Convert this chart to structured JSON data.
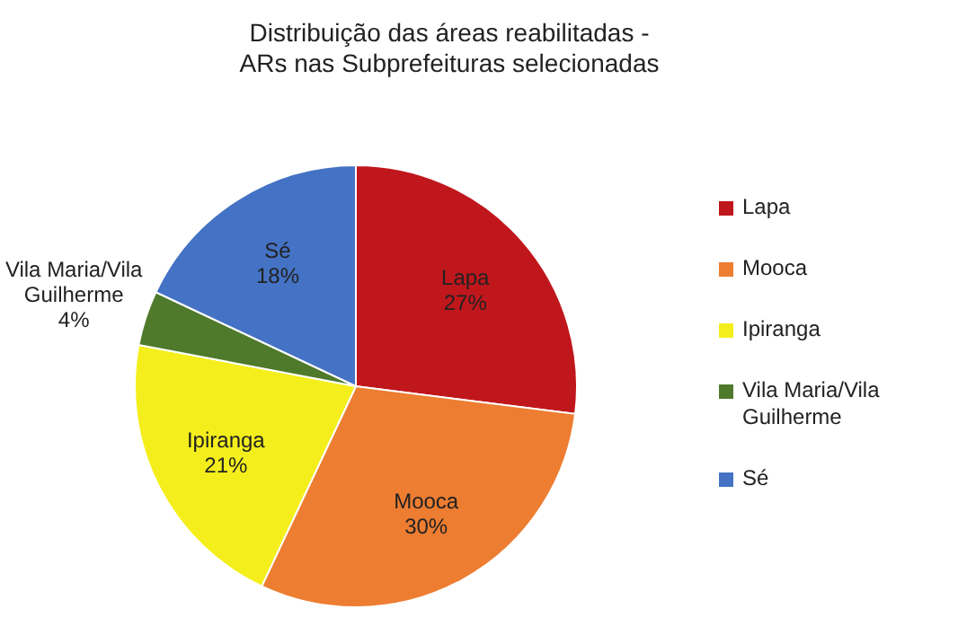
{
  "chart_data": {
    "type": "pie",
    "title": "Distribuição das áreas reabilitadas - ARs nas Subprefeituras selecionadas",
    "categories": [
      "Lapa",
      "Mooca",
      "Ipiranga",
      "Vila Maria/Vila Guilherme",
      "Sé"
    ],
    "values": [
      27,
      30,
      21,
      4,
      18
    ],
    "colors": [
      "#c0171c",
      "#ed7d31",
      "#f4ef1c",
      "#4f7a2c",
      "#4472c4"
    ],
    "value_labels": [
      "27%",
      "30%",
      "21%",
      "4%",
      "18%"
    ],
    "legend": "right"
  }
}
